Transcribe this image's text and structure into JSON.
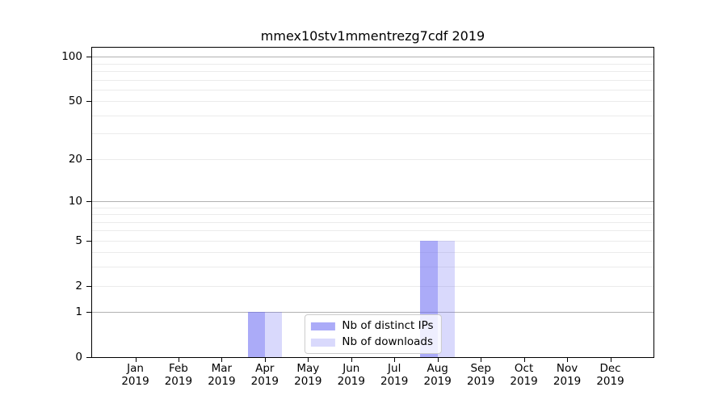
{
  "figure": {
    "background": "#ffffff"
  },
  "chart_data": {
    "type": "bar",
    "title": "mmex10stv1mmentrezg7cdf 2019",
    "categories": [
      "Jan 2019",
      "Feb 2019",
      "Mar 2019",
      "Apr 2019",
      "May 2019",
      "Jun 2019",
      "Jul 2019",
      "Aug 2019",
      "Sep 2019",
      "Oct 2019",
      "Nov 2019",
      "Dec 2019"
    ],
    "series": [
      {
        "name": "Nb of distinct IPs",
        "color": "rgba(102,102,242,0.55)",
        "values": [
          0,
          0,
          0,
          1,
          0,
          0,
          0,
          5,
          0,
          0,
          0,
          0
        ]
      },
      {
        "name": "Nb of downloads",
        "color": "rgba(102,102,242,0.25)",
        "values": [
          0,
          0,
          0,
          1,
          0,
          0,
          0,
          5,
          0,
          0,
          0,
          0
        ]
      }
    ],
    "xlabel": "",
    "ylabel": "",
    "yscale": "log1p",
    "ylim": [
      0,
      115
    ],
    "yticks": [
      0,
      1,
      2,
      5,
      10,
      20,
      50,
      100
    ],
    "major_gridlines": [
      1,
      10,
      100
    ],
    "minor_gridlines": [
      2,
      3,
      4,
      5,
      6,
      7,
      8,
      9,
      20,
      30,
      40,
      50,
      60,
      70,
      80,
      90
    ],
    "grid_major_color": "#b1b1b1",
    "grid_minor_color": "#ebebeb",
    "legend_position": "lower center"
  }
}
